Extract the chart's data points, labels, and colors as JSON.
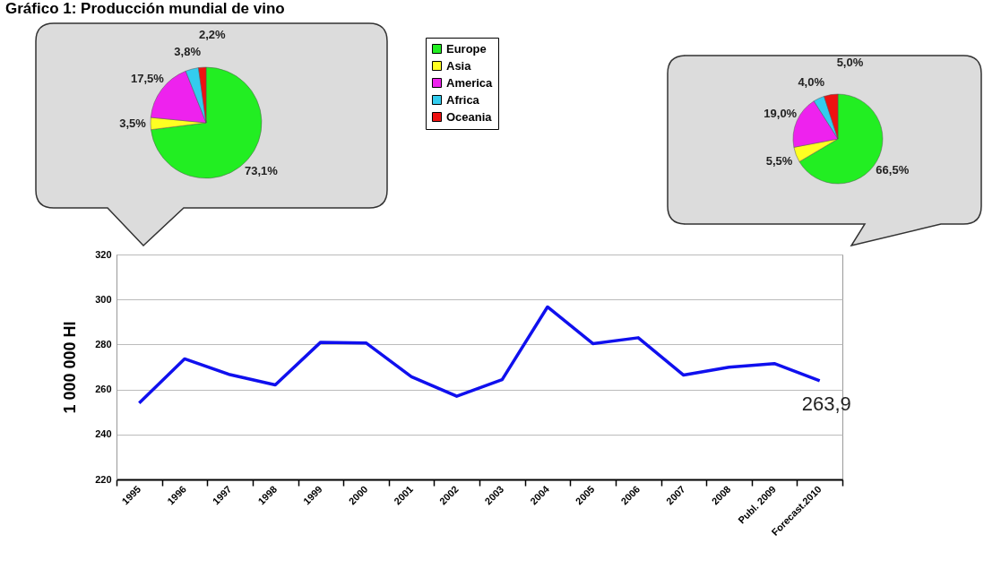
{
  "chart_data": [
    {
      "type": "pie",
      "categories": [
        "Europe",
        "Asia",
        "America",
        "Africa",
        "Oceania"
      ],
      "values": [
        73.1,
        3.5,
        17.5,
        3.8,
        2.2
      ],
      "colors": [
        "#22ee22",
        "#ffff22",
        "#ee22ee",
        "#33ccee",
        "#ee1111"
      ],
      "value_labels": [
        "73,1%",
        "3,5%",
        "17,5%",
        "3,8%",
        "2,2%"
      ],
      "legend": "right"
    },
    {
      "type": "line",
      "title": "Gráfico 1: Producción mundial de vino",
      "categories": [
        "1995",
        "1996",
        "1997",
        "1998",
        "1999",
        "2000",
        "2001",
        "2002",
        "2003",
        "2004",
        "2005",
        "2006",
        "2007",
        "2008",
        "Publ. 2009",
        "Forecast.2010"
      ],
      "series": [
        {
          "color": "#1010ee",
          "values": [
            254,
            273.6,
            266.6,
            262,
            281,
            280.7,
            265.7,
            257,
            264.4,
            296.7,
            280.4,
            283,
            266.4,
            269.9,
            271.5,
            263.9
          ]
        }
      ],
      "ylabel": "1 000 000 Hl",
      "ylim": [
        220,
        320
      ],
      "yticks": [
        220,
        240,
        260,
        280,
        300,
        320
      ],
      "grid": "y",
      "annotations": [
        {
          "text": "263,9",
          "x": "Forecast.2010",
          "y": 263.9
        }
      ]
    },
    {
      "type": "pie",
      "categories": [
        null,
        null,
        null,
        null,
        null
      ],
      "values": [
        66.5,
        5.5,
        19.0,
        4.0,
        5.0
      ],
      "colors": [
        "#22ee22",
        "#ffff22",
        "#ee22ee",
        "#33ccee",
        "#ee1111"
      ],
      "value_labels": [
        "66,5%",
        "5,5%",
        "19,0%",
        "4,0%",
        "5,0%"
      ]
    }
  ]
}
